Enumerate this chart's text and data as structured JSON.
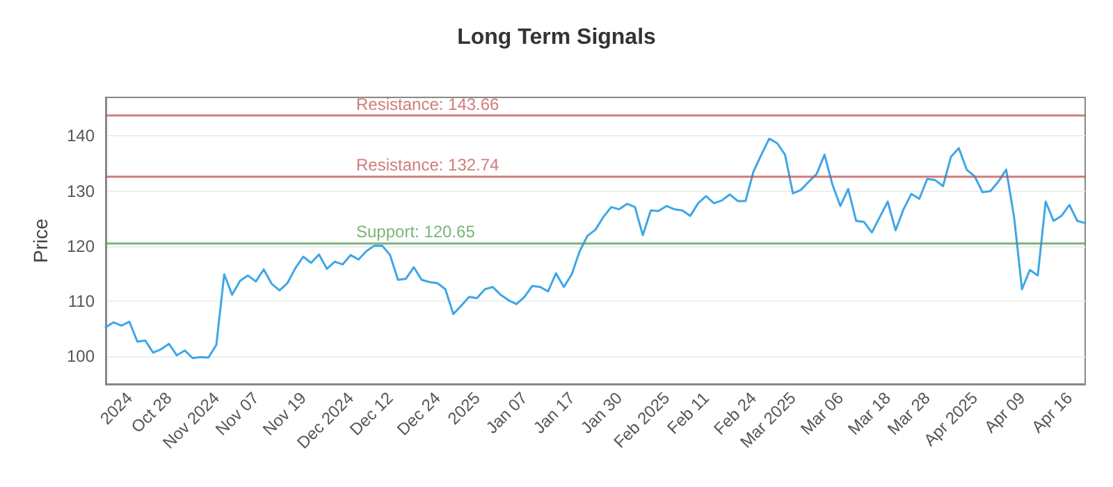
{
  "chart_data": {
    "type": "line",
    "title": "Long Term Signals",
    "ylabel": "Price",
    "categories": [
      null,
      null,
      null,
      "2024",
      null,
      null,
      null,
      null,
      "Oct 28",
      null,
      null,
      null,
      null,
      null,
      "Nov 2024",
      null,
      null,
      null,
      null,
      "Nov 07",
      null,
      null,
      null,
      null,
      null,
      "Nov 19",
      null,
      null,
      null,
      null,
      null,
      "Dec 2024",
      null,
      null,
      null,
      null,
      "Dec 12",
      null,
      null,
      null,
      null,
      null,
      "Dec 24",
      null,
      null,
      null,
      null,
      "2025",
      null,
      null,
      null,
      null,
      null,
      "Jan 07",
      null,
      null,
      null,
      null,
      null,
      "Jan 17",
      null,
      null,
      null,
      null,
      null,
      "Jan 30",
      null,
      null,
      null,
      null,
      null,
      "Feb 2025",
      null,
      null,
      null,
      null,
      "Feb 11",
      null,
      null,
      null,
      null,
      null,
      "Feb 24",
      null,
      null,
      null,
      null,
      "Mar 2025",
      null,
      null,
      null,
      null,
      null,
      "Mar 06",
      null,
      null,
      null,
      null,
      null,
      "Mar 18",
      null,
      null,
      null,
      null,
      "Mar 28",
      null,
      null,
      null,
      null,
      null,
      "Apr 2025",
      null,
      null,
      null,
      null,
      null,
      "Apr 09",
      null,
      null,
      null,
      null,
      null,
      "Apr 16",
      null,
      null
    ],
    "series": [
      {
        "color": "#3ea6e8",
        "values": [
          105.3,
          106.2,
          105.6,
          106.3,
          102.7,
          102.9,
          100.7,
          101.3,
          102.3,
          100.2,
          101.1,
          99.7,
          99.9,
          99.8,
          102.1,
          114.9,
          111.2,
          113.7,
          114.7,
          113.6,
          115.8,
          113.2,
          112.0,
          113.3,
          116.0,
          118.1,
          117.0,
          118.5,
          115.9,
          117.2,
          116.7,
          118.4,
          117.6,
          119.1,
          120.1,
          120.1,
          118.4,
          113.9,
          114.1,
          116.2,
          113.9,
          113.5,
          113.3,
          112.2,
          107.7,
          109.2,
          110.8,
          110.6,
          112.2,
          112.6,
          111.2,
          110.2,
          109.5,
          110.8,
          112.8,
          112.6,
          111.8,
          115.1,
          112.6,
          114.9,
          119.1,
          121.9,
          123.0,
          125.3,
          127.1,
          126.7,
          127.7,
          127.1,
          122.0,
          126.5,
          126.4,
          127.3,
          126.7,
          126.5,
          125.5,
          127.8,
          129.1,
          127.8,
          128.3,
          129.4,
          128.2,
          128.2,
          133.5,
          136.6,
          139.5,
          138.7,
          136.6,
          129.6,
          130.2,
          131.7,
          133.1,
          136.6,
          131.2,
          127.3,
          130.4,
          124.6,
          124.4,
          122.5,
          125.3,
          128.1,
          122.9,
          126.7,
          129.5,
          128.6,
          132.2,
          132.0,
          130.9,
          136.2,
          137.8,
          133.9,
          132.7,
          129.8,
          130.0,
          131.7,
          133.9,
          125.3,
          112.2,
          115.7,
          114.7,
          128.1,
          124.6,
          125.5,
          127.5,
          124.6,
          124.2
        ]
      }
    ],
    "ylim": [
      95,
      147
    ],
    "yticks": [
      100,
      110,
      120,
      130,
      140
    ],
    "grid": "y",
    "line_style": "solid",
    "ref_lines": [
      {
        "axis": "y",
        "value": 143.66,
        "label": "Resistance: 143.66",
        "color": "#c0504d"
      },
      {
        "axis": "y",
        "value": 132.74,
        "label": "Resistance: 132.74",
        "color": "#c0504d"
      },
      {
        "axis": "y",
        "value": 120.65,
        "label": "Support: 120.65",
        "color": "#4a9e4a"
      }
    ]
  }
}
